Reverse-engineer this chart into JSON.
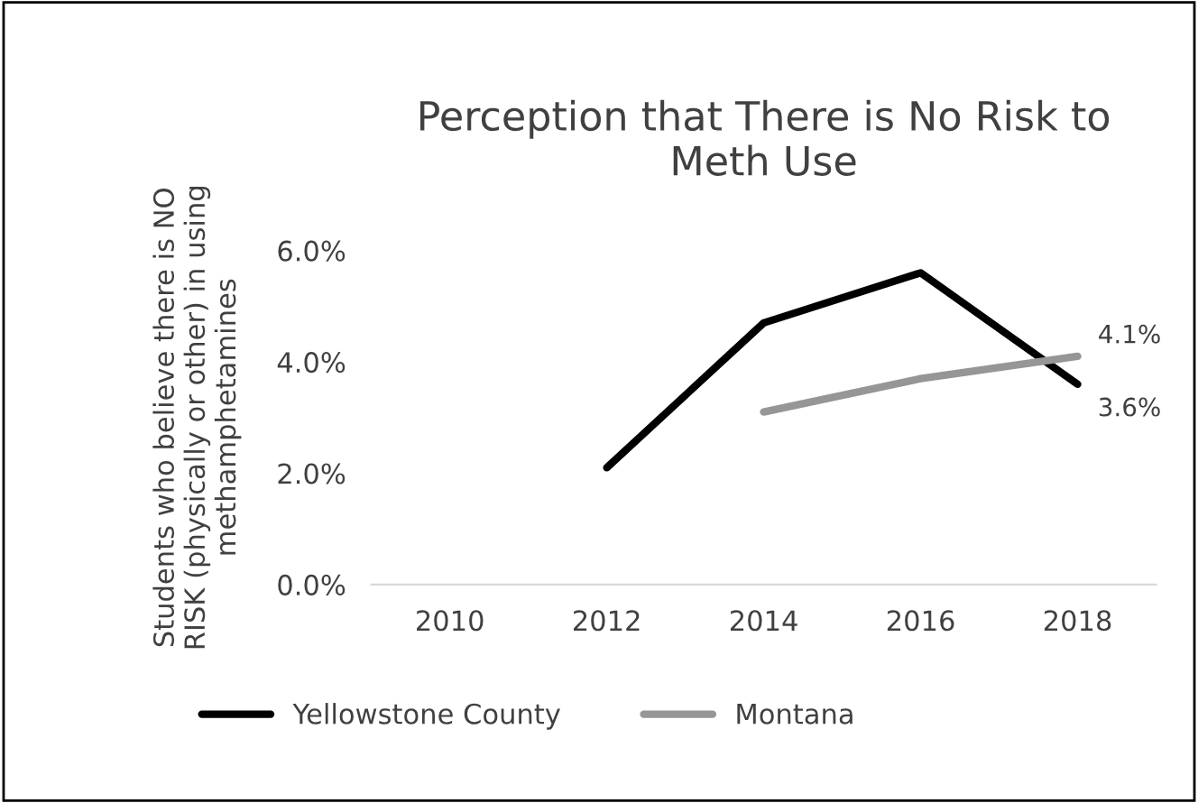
{
  "chart_data": {
    "type": "line",
    "title": "Perception that There is No Risk to\nMeth Use",
    "ylabel": "Students who believe there is NO\nRISK (physically or other) in using\nmethamphetamines",
    "categories": [
      "2010",
      "2012",
      "2014",
      "2016",
      "2018"
    ],
    "series": [
      {
        "name": "Yellowstone County",
        "color": "#000000",
        "values": [
          null,
          2.1,
          4.7,
          5.6,
          3.6
        ],
        "value_labels": [
          null,
          null,
          null,
          null,
          "3.6%"
        ]
      },
      {
        "name": "Montana",
        "color": "#969696",
        "values": [
          null,
          null,
          3.1,
          3.7,
          4.1
        ],
        "value_labels": [
          null,
          null,
          null,
          null,
          "4.1%"
        ]
      }
    ],
    "ylim": [
      0,
      6
    ],
    "yticks": [
      {
        "value": 0,
        "label": "0.0%"
      },
      {
        "value": 2,
        "label": "2.0%"
      },
      {
        "value": 4,
        "label": "4.0%"
      },
      {
        "value": 6,
        "label": "6.0%"
      }
    ],
    "grid": false,
    "legend": "bottom",
    "marker": "none",
    "line_style": "solid"
  }
}
